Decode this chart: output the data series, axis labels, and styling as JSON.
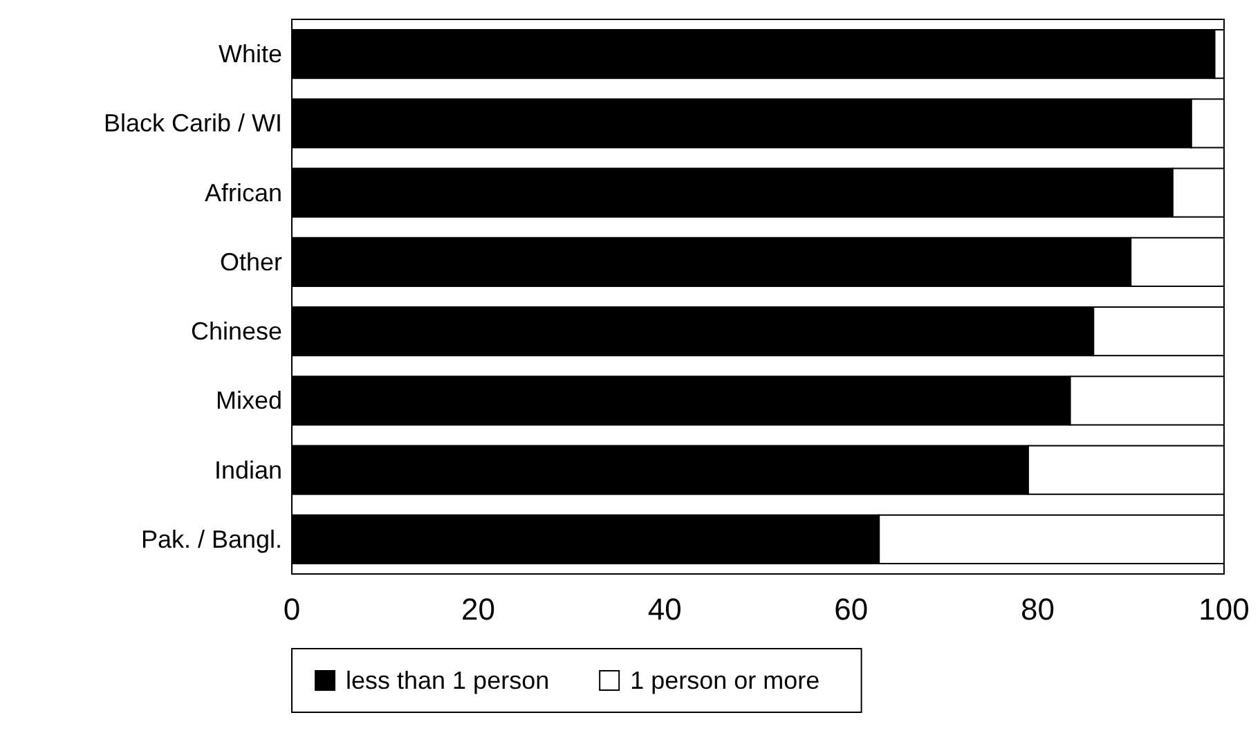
{
  "chart_data": {
    "type": "bar",
    "orientation": "horizontal",
    "stacked": true,
    "categories": [
      "White",
      "Black Carib / WI",
      "African",
      "Other",
      "Chinese",
      "Mixed",
      "Indian",
      "Pak. / Bangl."
    ],
    "series": [
      {
        "name": "less than 1 person",
        "color": "#000000",
        "values": [
          99,
          96.5,
          94.5,
          90,
          86,
          83.5,
          79,
          63
        ]
      },
      {
        "name": "1 person or more",
        "color": "#ffffff",
        "values": [
          1,
          3.5,
          5.5,
          10,
          14,
          16.5,
          21,
          37
        ]
      }
    ],
    "xlim": [
      0,
      100
    ],
    "xticks": [
      0,
      20,
      40,
      60,
      80,
      100
    ],
    "grid": false,
    "legend": "bottom"
  }
}
